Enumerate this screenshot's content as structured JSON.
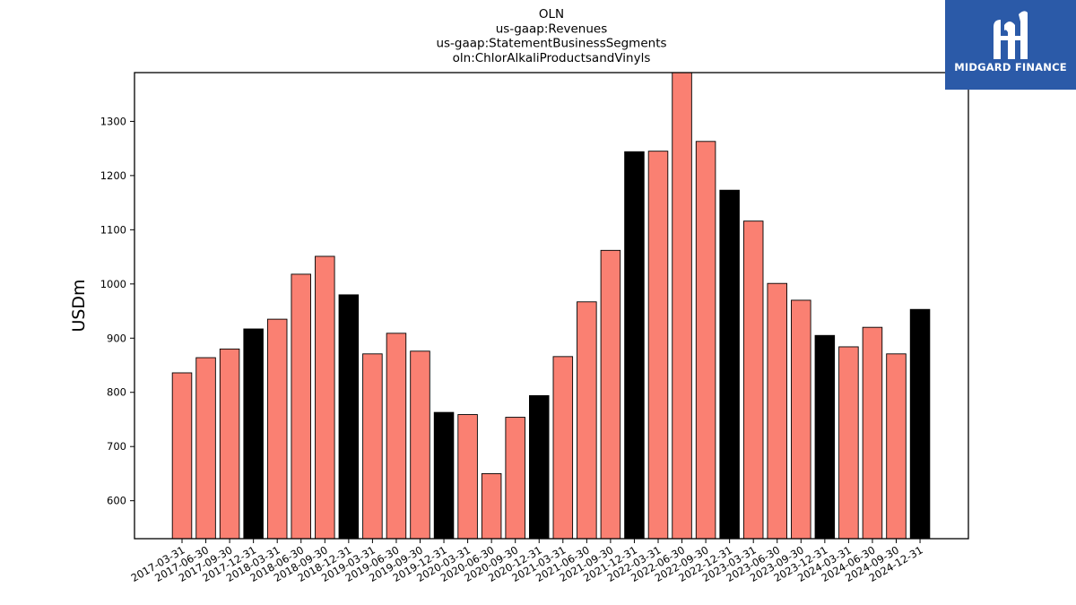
{
  "chart_data": {
    "type": "bar",
    "title_lines": [
      "OLN",
      "us-gaap:Revenues",
      "us-gaap:StatementBusinessSegments",
      "oln:ChlorAlkaliProductsandVinyls"
    ],
    "ylabel": "USDm",
    "xlabel": "",
    "ylim": [
      530,
      1390
    ],
    "yticks": [
      600,
      700,
      800,
      900,
      1000,
      1100,
      1200,
      1300
    ],
    "grid": false,
    "colors": {
      "quarter": "#fa8072",
      "year_end": "#000000",
      "edge": "#000000"
    },
    "categories": [
      "2017-03-31",
      "2017-06-30",
      "2017-09-30",
      "2017-12-31",
      "2018-03-31",
      "2018-06-30",
      "2018-09-30",
      "2018-12-31",
      "2019-03-31",
      "2019-06-30",
      "2019-09-30",
      "2019-12-31",
      "2020-03-31",
      "2020-06-30",
      "2020-09-30",
      "2020-12-31",
      "2021-03-31",
      "2021-06-30",
      "2021-09-30",
      "2021-12-31",
      "2022-03-31",
      "2022-06-30",
      "2022-09-30",
      "2022-12-31",
      "2023-03-31",
      "2023-06-30",
      "2023-09-30",
      "2023-12-31",
      "2024-03-31",
      "2024-06-30",
      "2024-09-30",
      "2024-12-31"
    ],
    "values": [
      836,
      864,
      880,
      917,
      935,
      1018,
      1051,
      980,
      871,
      909,
      876,
      763,
      759,
      650,
      754,
      794,
      866,
      967,
      1062,
      1244,
      1245,
      1392,
      1263,
      1173,
      1116,
      1001,
      970,
      905,
      884,
      920,
      871,
      953
    ]
  },
  "logo": {
    "text": "MIDGARD FINANCE"
  }
}
